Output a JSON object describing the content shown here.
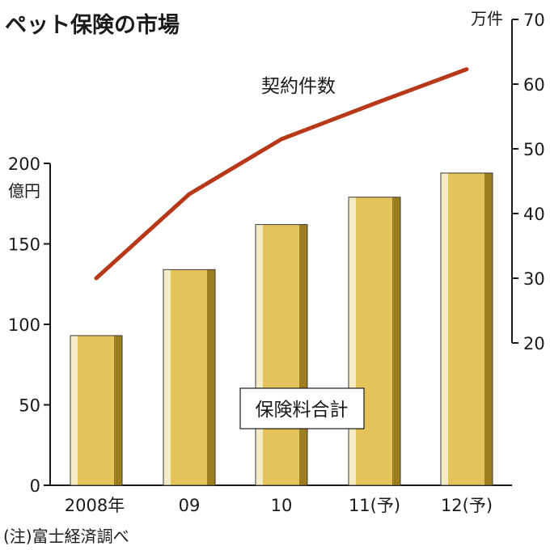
{
  "chart_data": {
    "type": "bar",
    "title": "ペット保険の市場",
    "categories": [
      "2008年",
      "09",
      "10",
      "11(予)",
      "12(予)"
    ],
    "bar_series": {
      "name": "保険料合計",
      "unit": "億円",
      "values": [
        93,
        134,
        162,
        179,
        194
      ],
      "ylim": [
        0,
        200
      ],
      "ticks": [
        0,
        50,
        100,
        150,
        200
      ],
      "color": "#e3c35a"
    },
    "line_series": {
      "name": "契約件数",
      "unit": "万件",
      "values": [
        30,
        43,
        51.5,
        57,
        62.3
      ],
      "ylim": [
        20,
        70
      ],
      "ticks": [
        20,
        30,
        40,
        50,
        60,
        70
      ],
      "color": "#b8391a"
    },
    "note": "(注)富士経済調べ",
    "grid": false
  }
}
